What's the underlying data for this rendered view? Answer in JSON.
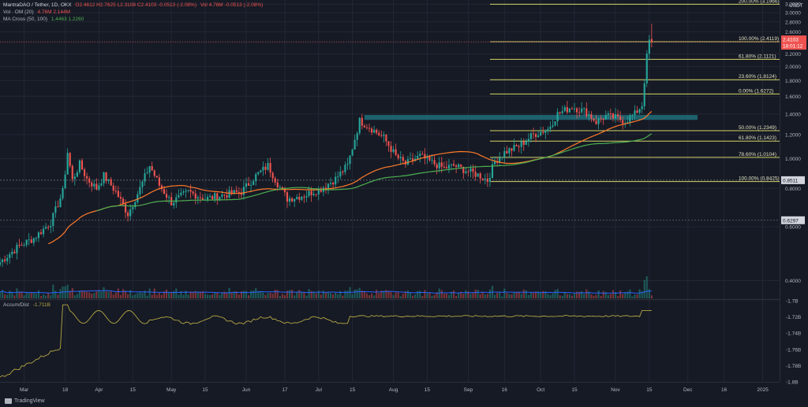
{
  "header": {
    "symbol": "MantraDAO / Tether, 1D, OKX",
    "ohlc": "O2.4612  H2.7625  L2.3108  C2.4103  -0.0513 (-2.08%)",
    "vol_text": "Vol 4.76M  -0.0513 (-2.08%)",
    "vol_ind": "Vol · OM (20)",
    "vol_vals": "4.76M  2.144M",
    "ma_ind": "MA Cross (50, 100)",
    "ma_vals": "1.4463  1.2260",
    "accum": "Accum/Dist",
    "accum_val": "-1.711B"
  },
  "currency": "USDT",
  "branding": "TradingView",
  "colors": {
    "bg": "#161a25",
    "grid": "#232735",
    "up": "#26a69a",
    "down": "#ef5350",
    "fib": "#d4d467",
    "ma50": "#ff7a29",
    "ma100": "#4caf50",
    "vol_ma": "#2962ff",
    "zone": "#1f6f7a",
    "ad": "#b5a642",
    "price_tag": "#ef5350"
  },
  "chart_data": [
    {
      "type": "candlestick",
      "y_scale": "log",
      "ylim": [
        0.35,
        3.3
      ],
      "x_range": [
        "2024-02-20",
        "2025-01-08"
      ],
      "y_ticks": [
        "0.4000",
        "0.6000",
        "0.8000",
        "1.0000",
        "1.2000",
        "1.4000",
        "1.6000",
        "1.8000",
        "2.0000",
        "2.2000",
        "2.4000",
        "2.6000",
        "2.8000",
        "3.0000",
        "3.2000"
      ],
      "x_ticks": [
        {
          "d": "2024-03-01",
          "l": "Mar"
        },
        {
          "d": "2024-03-18",
          "l": "18"
        },
        {
          "d": "2024-04-01",
          "l": "Apr"
        },
        {
          "d": "2024-04-15",
          "l": "15"
        },
        {
          "d": "2024-05-01",
          "l": "May"
        },
        {
          "d": "2024-05-15",
          "l": "15"
        },
        {
          "d": "2024-06-01",
          "l": "Jun"
        },
        {
          "d": "2024-06-17",
          "l": "17"
        },
        {
          "d": "2024-07-01",
          "l": "Jul"
        },
        {
          "d": "2024-07-15",
          "l": "15"
        },
        {
          "d": "2024-08-01",
          "l": "Aug"
        },
        {
          "d": "2024-08-15",
          "l": "15"
        },
        {
          "d": "2024-09-01",
          "l": "Sep"
        },
        {
          "d": "2024-09-16",
          "l": "16"
        },
        {
          "d": "2024-10-01",
          "l": "Oct"
        },
        {
          "d": "2024-10-15",
          "l": "15"
        },
        {
          "d": "2024-11-01",
          "l": "Nov"
        },
        {
          "d": "2024-11-15",
          "l": "15"
        },
        {
          "d": "2024-12-01",
          "l": "Dec"
        },
        {
          "d": "2024-12-16",
          "l": "16"
        },
        {
          "d": "2025-01-01",
          "l": "2025"
        }
      ],
      "anchors": [
        [
          "2024-02-20",
          0.46
        ],
        [
          "2024-02-28",
          0.52
        ],
        [
          "2024-03-05",
          0.55
        ],
        [
          "2024-03-12",
          0.62
        ],
        [
          "2024-03-17",
          0.78
        ],
        [
          "2024-03-19",
          1.05
        ],
        [
          "2024-03-21",
          0.85
        ],
        [
          "2024-03-24",
          0.96
        ],
        [
          "2024-03-27",
          0.86
        ],
        [
          "2024-03-31",
          0.8
        ],
        [
          "2024-04-03",
          0.88
        ],
        [
          "2024-04-08",
          0.78
        ],
        [
          "2024-04-13",
          0.66
        ],
        [
          "2024-04-18",
          0.8
        ],
        [
          "2024-04-22",
          0.95
        ],
        [
          "2024-04-26",
          0.82
        ],
        [
          "2024-05-01",
          0.72
        ],
        [
          "2024-05-08",
          0.78
        ],
        [
          "2024-05-15",
          0.74
        ],
        [
          "2024-05-22",
          0.76
        ],
        [
          "2024-05-30",
          0.78
        ],
        [
          "2024-06-05",
          0.88
        ],
        [
          "2024-06-10",
          0.95
        ],
        [
          "2024-06-14",
          0.83
        ],
        [
          "2024-06-18",
          0.74
        ],
        [
          "2024-06-25",
          0.76
        ],
        [
          "2024-07-02",
          0.8
        ],
        [
          "2024-07-08",
          0.86
        ],
        [
          "2024-07-13",
          0.95
        ],
        [
          "2024-07-18",
          1.33
        ],
        [
          "2024-07-22",
          1.27
        ],
        [
          "2024-07-28",
          1.17
        ],
        [
          "2024-08-02",
          1.02
        ],
        [
          "2024-08-06",
          0.96
        ],
        [
          "2024-08-12",
          1.02
        ],
        [
          "2024-08-16",
          0.98
        ],
        [
          "2024-08-22",
          0.93
        ],
        [
          "2024-08-26",
          0.95
        ],
        [
          "2024-09-01",
          0.91
        ],
        [
          "2024-09-06",
          0.88
        ],
        [
          "2024-09-09",
          0.85
        ],
        [
          "2024-09-12",
          0.98
        ],
        [
          "2024-09-16",
          1.05
        ],
        [
          "2024-09-22",
          1.1
        ],
        [
          "2024-09-28",
          1.2
        ],
        [
          "2024-10-04",
          1.25
        ],
        [
          "2024-10-08",
          1.4
        ],
        [
          "2024-10-14",
          1.48
        ],
        [
          "2024-10-20",
          1.42
        ],
        [
          "2024-10-24",
          1.32
        ],
        [
          "2024-10-28",
          1.38
        ],
        [
          "2024-11-01",
          1.36
        ],
        [
          "2024-11-05",
          1.33
        ],
        [
          "2024-11-09",
          1.4
        ],
        [
          "2024-11-12",
          1.5
        ],
        [
          "2024-11-13",
          1.8
        ],
        [
          "2024-11-14",
          2.15
        ],
        [
          "2024-11-15",
          2.43
        ],
        [
          "2024-11-16",
          2.41
        ]
      ],
      "last_price": 2.4103,
      "price_tag": [
        "2.4103",
        "18:01:12"
      ],
      "level_tags": [
        {
          "v": 0.8511,
          "l": "0.8511"
        },
        {
          "v": 0.6297,
          "l": "0.6297"
        }
      ],
      "fib_start": "2024-09-10",
      "fib_levels": [
        {
          "v": 3.1966,
          "l": "200.00% (3.1966)"
        },
        {
          "v": 2.4119,
          "l": "100.00% (2.4119)"
        },
        {
          "v": 2.1121,
          "l": "61.80% (2.1121)"
        },
        {
          "v": 1.8124,
          "l": "23.60% (1.8124)"
        },
        {
          "v": 1.6272,
          "l": "0.00% (1.6272)"
        },
        {
          "v": 1.2349,
          "l": "50.00% (1.2349)"
        },
        {
          "v": 1.1423,
          "l": "61.80% (1.1423)"
        },
        {
          "v": 1.0104,
          "l": "78.60% (1.0104)"
        },
        {
          "v": 0.8425,
          "l": "100.00% (0.8425)"
        }
      ],
      "zone": {
        "from": "2024-07-20",
        "to": "2024-12-05",
        "low": 1.34,
        "high": 1.39
      }
    },
    {
      "type": "line",
      "name": "Accum/Dist",
      "ylabels": [
        "-1.7B",
        "-1.72B",
        "-1.74B",
        "-1.76B",
        "-1.78B",
        "-1.8B"
      ],
      "ylim": [
        -1.8,
        -1.7
      ]
    }
  ]
}
